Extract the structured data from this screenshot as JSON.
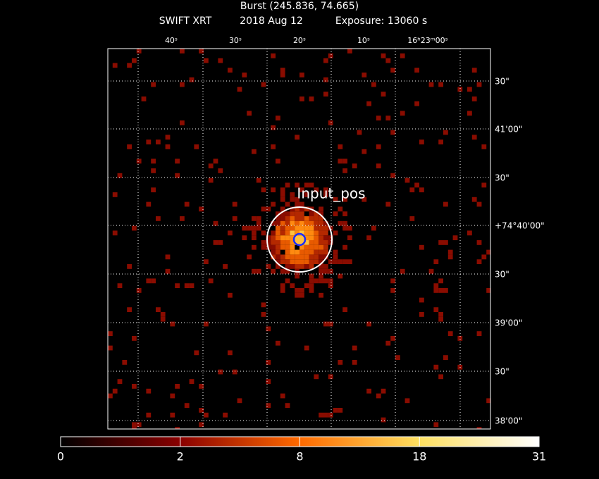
{
  "header": {
    "title": "Burst (245.836, 74.665)",
    "instrument": "SWIFT XRT",
    "date": "2018 Aug 12",
    "exposure": "Exposure: 13060 s"
  },
  "image": {
    "top_axis_labels": [
      "40ˢ",
      "30ˢ",
      "20ˢ",
      "10ˢ",
      "16ʰ23ᵐ00ˢ"
    ],
    "right_axis_labels": [
      "30\"",
      "41'00\"",
      "30\"",
      "+74°40'00\"",
      "30\"",
      "39'00\"",
      "30\"",
      "38'00\""
    ],
    "annotation": "Input_pos"
  },
  "colorbar": {
    "ticks": [
      "0",
      "2",
      "8",
      "18",
      "31"
    ]
  }
}
